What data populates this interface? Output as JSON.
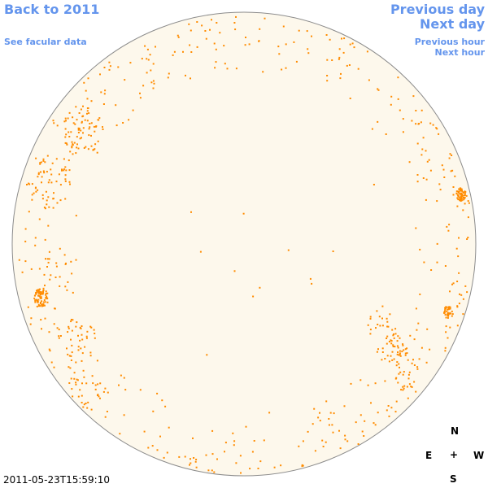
{
  "nav": {
    "back": "Back to 2011",
    "facular": "See facular data",
    "previous_day": "Previous day",
    "next_day": "Next day",
    "previous_hour": "Previous hour",
    "next_hour": "Next hour"
  },
  "compass": {
    "north": "N",
    "east": "E",
    "center": "+",
    "west": "W",
    "south": "S"
  },
  "timestamp": "2011-05-23T15:59:10",
  "colors": {
    "link": "#6495ed",
    "disk_fill": "#fdf8ec",
    "disk_edge": "#8c8c8c",
    "faculae": "#ff8c00"
  }
}
